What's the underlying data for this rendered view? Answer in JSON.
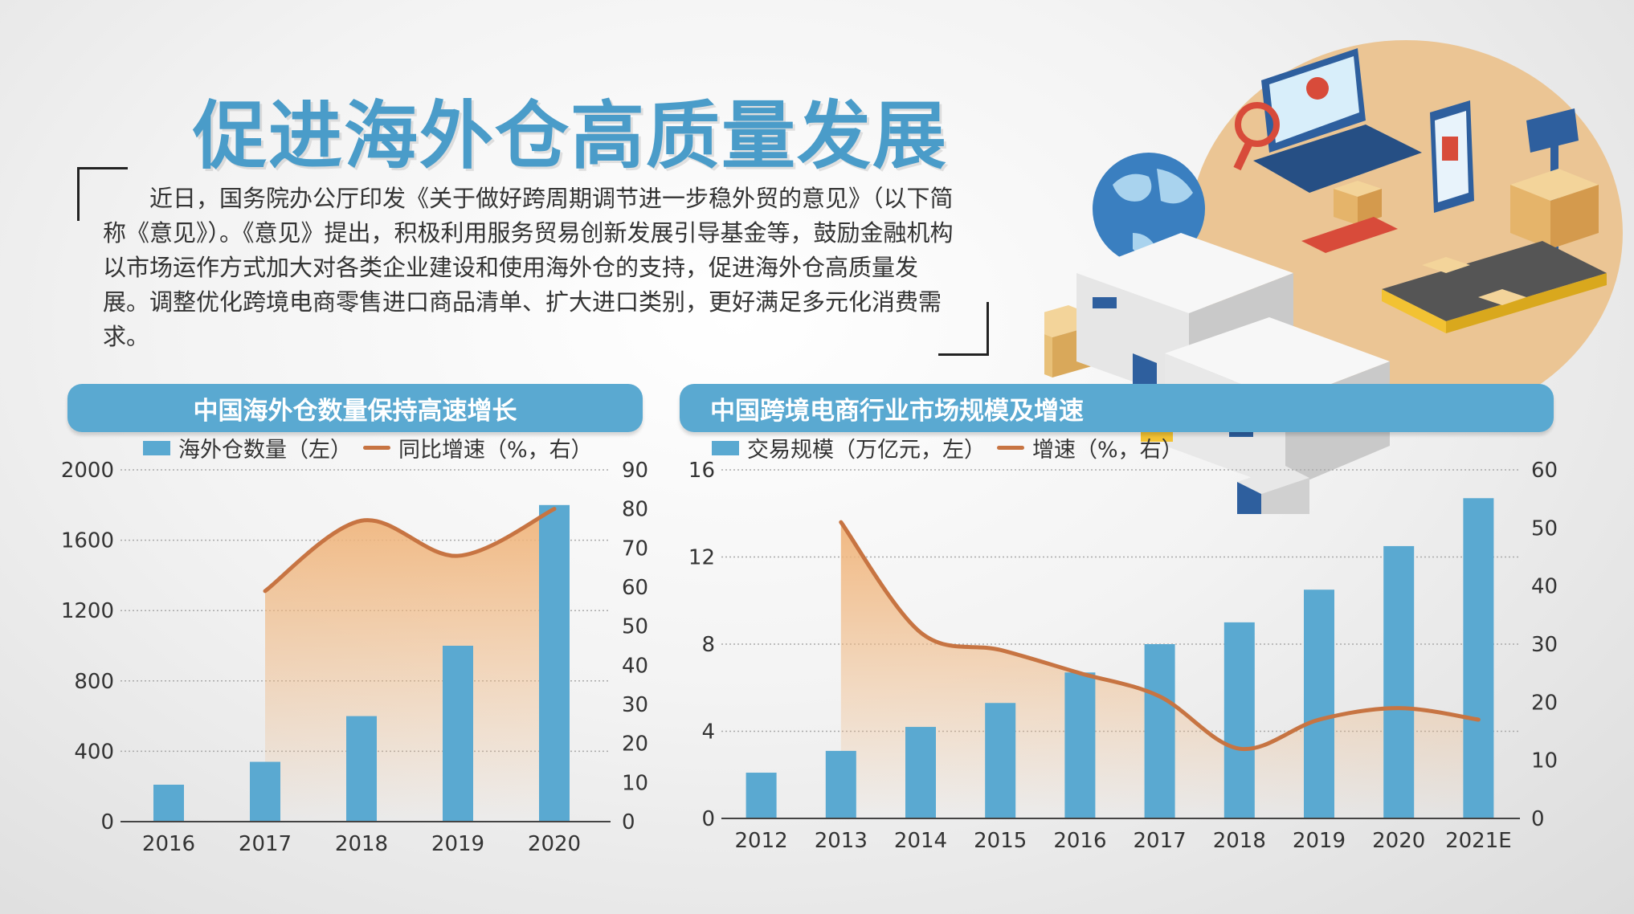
{
  "title": "促进海外仓高质量发展",
  "intro": "近日，国务院办公厅印发《关于做好跨周期调节进一步稳外贸的意见》（以下简称《意见》）。《意见》提出，积极利用服务贸易创新发展引导基金等，鼓励金融机构以市场运作方式加大对各类企业建设和使用海外仓的支持，促进海外仓高质量发展。调整优化跨境电商零售进口商品清单、扩大进口类别，更好满足多元化消费需求。",
  "colors": {
    "bar": "#5aa9d1",
    "line": "#c77442",
    "area": "#f0b57c",
    "header": "#5aa9d1",
    "title": "#4a9cc9"
  },
  "illustration_icons": [
    "globe-icon",
    "laptop-icon",
    "magnifier-icon",
    "phone-icon",
    "scale-icon",
    "box-icon",
    "warehouse-icon",
    "truck-icon",
    "forklift-icon",
    "conveyor-icon",
    "pallet-icon"
  ],
  "chart_data": [
    {
      "type": "bar",
      "title": "中国海外仓数量保持高速增长",
      "legend": {
        "bar_label": "海外仓数量（左）",
        "line_label": "同比增速（%，右）"
      },
      "categories": [
        "2016",
        "2017",
        "2018",
        "2019",
        "2020"
      ],
      "series": [
        {
          "name": "海外仓数量（左）",
          "type": "bar",
          "axis": "left",
          "values": [
            210,
            340,
            600,
            1000,
            1800
          ]
        },
        {
          "name": "同比增速（%，右）",
          "type": "line",
          "axis": "right",
          "values": [
            null,
            59,
            77,
            68,
            80
          ]
        }
      ],
      "ylim_left": [
        0,
        2000
      ],
      "yticks_left": [
        "0",
        "400",
        "800",
        "1200",
        "1600",
        "2000"
      ],
      "ylim_right": [
        0,
        90
      ],
      "yticks_right": [
        "0",
        "10",
        "20",
        "30",
        "40",
        "50",
        "60",
        "70",
        "80",
        "90"
      ],
      "grid": true
    },
    {
      "type": "bar",
      "title": "中国跨境电商行业市场规模及增速",
      "legend": {
        "bar_label": "交易规模（万亿元，左）",
        "line_label": "增速（%，右）"
      },
      "categories": [
        "2012",
        "2013",
        "2014",
        "2015",
        "2016",
        "2017",
        "2018",
        "2019",
        "2020",
        "2021E"
      ],
      "series": [
        {
          "name": "交易规模（万亿元，左）",
          "type": "bar",
          "axis": "left",
          "values": [
            2.1,
            3.1,
            4.2,
            5.3,
            6.7,
            8.0,
            9.0,
            10.5,
            12.5,
            14.7
          ]
        },
        {
          "name": "增速（%，右）",
          "type": "line",
          "axis": "right",
          "values": [
            null,
            51,
            32,
            29,
            25,
            21,
            12,
            17,
            19,
            17
          ]
        }
      ],
      "ylim_left": [
        0,
        16
      ],
      "yticks_left": [
        "0",
        "4",
        "8",
        "12",
        "16"
      ],
      "ylim_right": [
        0,
        60
      ],
      "yticks_right": [
        "0",
        "10",
        "20",
        "30",
        "40",
        "50",
        "60"
      ],
      "grid": true
    }
  ]
}
